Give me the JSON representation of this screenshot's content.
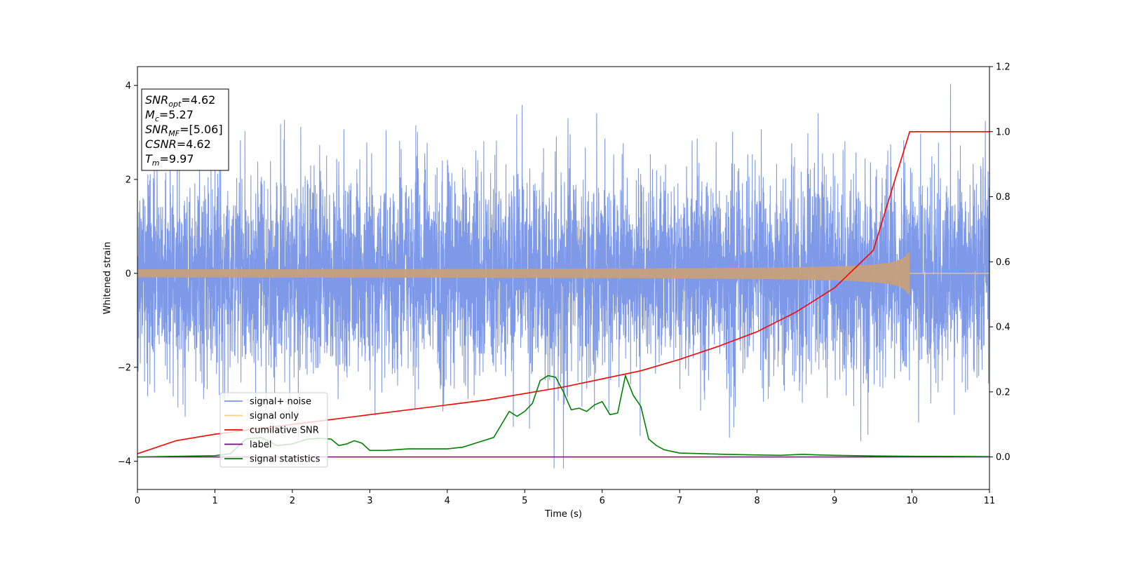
{
  "chart_data": {
    "type": "line",
    "xlabel": "Time (s)",
    "ylabel": "Whitened strain",
    "xlim": [
      0,
      11
    ],
    "ylim_left": [
      -4.6,
      4.4
    ],
    "ylim_right": [
      -0.1,
      1.2
    ],
    "x_ticks": [
      "0",
      "1",
      "2",
      "3",
      "4",
      "5",
      "6",
      "7",
      "8",
      "9",
      "10",
      "11"
    ],
    "y_left_ticks": [
      "−4",
      "−2",
      "0",
      "2",
      "4"
    ],
    "y_left_tick_values": [
      -4,
      -2,
      0,
      2,
      4
    ],
    "y_right_ticks": [
      "0.0",
      "0.2",
      "0.4",
      "0.6",
      "0.8",
      "1.0",
      "1.2"
    ],
    "y_right_tick_values": [
      0.0,
      0.2,
      0.4,
      0.6,
      0.8,
      1.0,
      1.2
    ],
    "stats_box": {
      "lines": [
        {
          "sym": "SNR",
          "sub": "opt",
          "value": "=4.62"
        },
        {
          "sym": "M",
          "sub": "c",
          "value": "=5.27"
        },
        {
          "sym": "SNR",
          "sub": "MF",
          "value": "=[5.06]"
        },
        {
          "sym": "CSNR",
          "sub": "",
          "value": "=4.62"
        },
        {
          "sym": "T",
          "sub": "m",
          "value": "=9.97"
        }
      ]
    },
    "legend": {
      "placement": "lower-left",
      "entries": [
        {
          "label": "signal+ noise",
          "color": "#7b97e8"
        },
        {
          "label": "signal only",
          "color": "#ffcc80"
        },
        {
          "label": "cumilative SNR",
          "color": "#ff0000"
        },
        {
          "label": "label",
          "color": "#800080"
        },
        {
          "label": "signal statistics",
          "color": "#008000"
        }
      ]
    },
    "series": [
      {
        "name": "signal+ noise",
        "axis": "left",
        "color": "#7b97e8",
        "noise_sigma": 1.0,
        "x_range": [
          0,
          11
        ]
      },
      {
        "name": "signal only",
        "axis": "left",
        "color": "#c8a07c",
        "merger_time": 9.97,
        "peak_amplitude": 0.47
      },
      {
        "name": "cumilative SNR",
        "axis": "right",
        "color": "#ff0000",
        "x": [
          0,
          0.5,
          1,
          1.5,
          2,
          2.5,
          3,
          3.5,
          4,
          4.5,
          5,
          5.5,
          6,
          6.5,
          7,
          7.5,
          8,
          8.5,
          9,
          9.5,
          9.97,
          10,
          11
        ],
        "y": [
          0.01,
          0.05,
          0.07,
          0.085,
          0.1,
          0.115,
          0.13,
          0.145,
          0.16,
          0.175,
          0.195,
          0.215,
          0.24,
          0.265,
          0.3,
          0.34,
          0.385,
          0.445,
          0.52,
          0.635,
          1.0,
          1.0,
          1.0
        ]
      },
      {
        "name": "label",
        "axis": "right",
        "color": "#800080",
        "x": [
          0,
          11
        ],
        "y": [
          0.0,
          0.0
        ]
      },
      {
        "name": "signal statistics",
        "axis": "right",
        "color": "#008000",
        "x": [
          0,
          0.5,
          1,
          1.2,
          1.4,
          1.6,
          1.8,
          2,
          2.2,
          2.35,
          2.5,
          2.6,
          2.7,
          2.8,
          2.9,
          3,
          3.2,
          3.5,
          4,
          4.2,
          4.4,
          4.6,
          4.7,
          4.8,
          4.9,
          5,
          5.1,
          5.2,
          5.3,
          5.4,
          5.5,
          5.6,
          5.7,
          5.8,
          5.9,
          6,
          6.1,
          6.2,
          6.3,
          6.4,
          6.5,
          6.6,
          6.7,
          6.8,
          7,
          7.3,
          7.6,
          8,
          8.3,
          8.6,
          8.8,
          9,
          9.5,
          10,
          11
        ],
        "y": [
          0.0,
          0.002,
          0.004,
          0.01,
          0.055,
          0.06,
          0.035,
          0.04,
          0.055,
          0.057,
          0.055,
          0.035,
          0.04,
          0.05,
          0.042,
          0.02,
          0.02,
          0.025,
          0.025,
          0.03,
          0.045,
          0.06,
          0.1,
          0.14,
          0.125,
          0.14,
          0.165,
          0.235,
          0.25,
          0.245,
          0.2,
          0.145,
          0.15,
          0.14,
          0.16,
          0.17,
          0.13,
          0.135,
          0.25,
          0.19,
          0.155,
          0.055,
          0.035,
          0.022,
          0.012,
          0.01,
          0.008,
          0.006,
          0.005,
          0.008,
          0.006,
          0.005,
          0.003,
          0.002,
          0.001
        ]
      }
    ]
  }
}
